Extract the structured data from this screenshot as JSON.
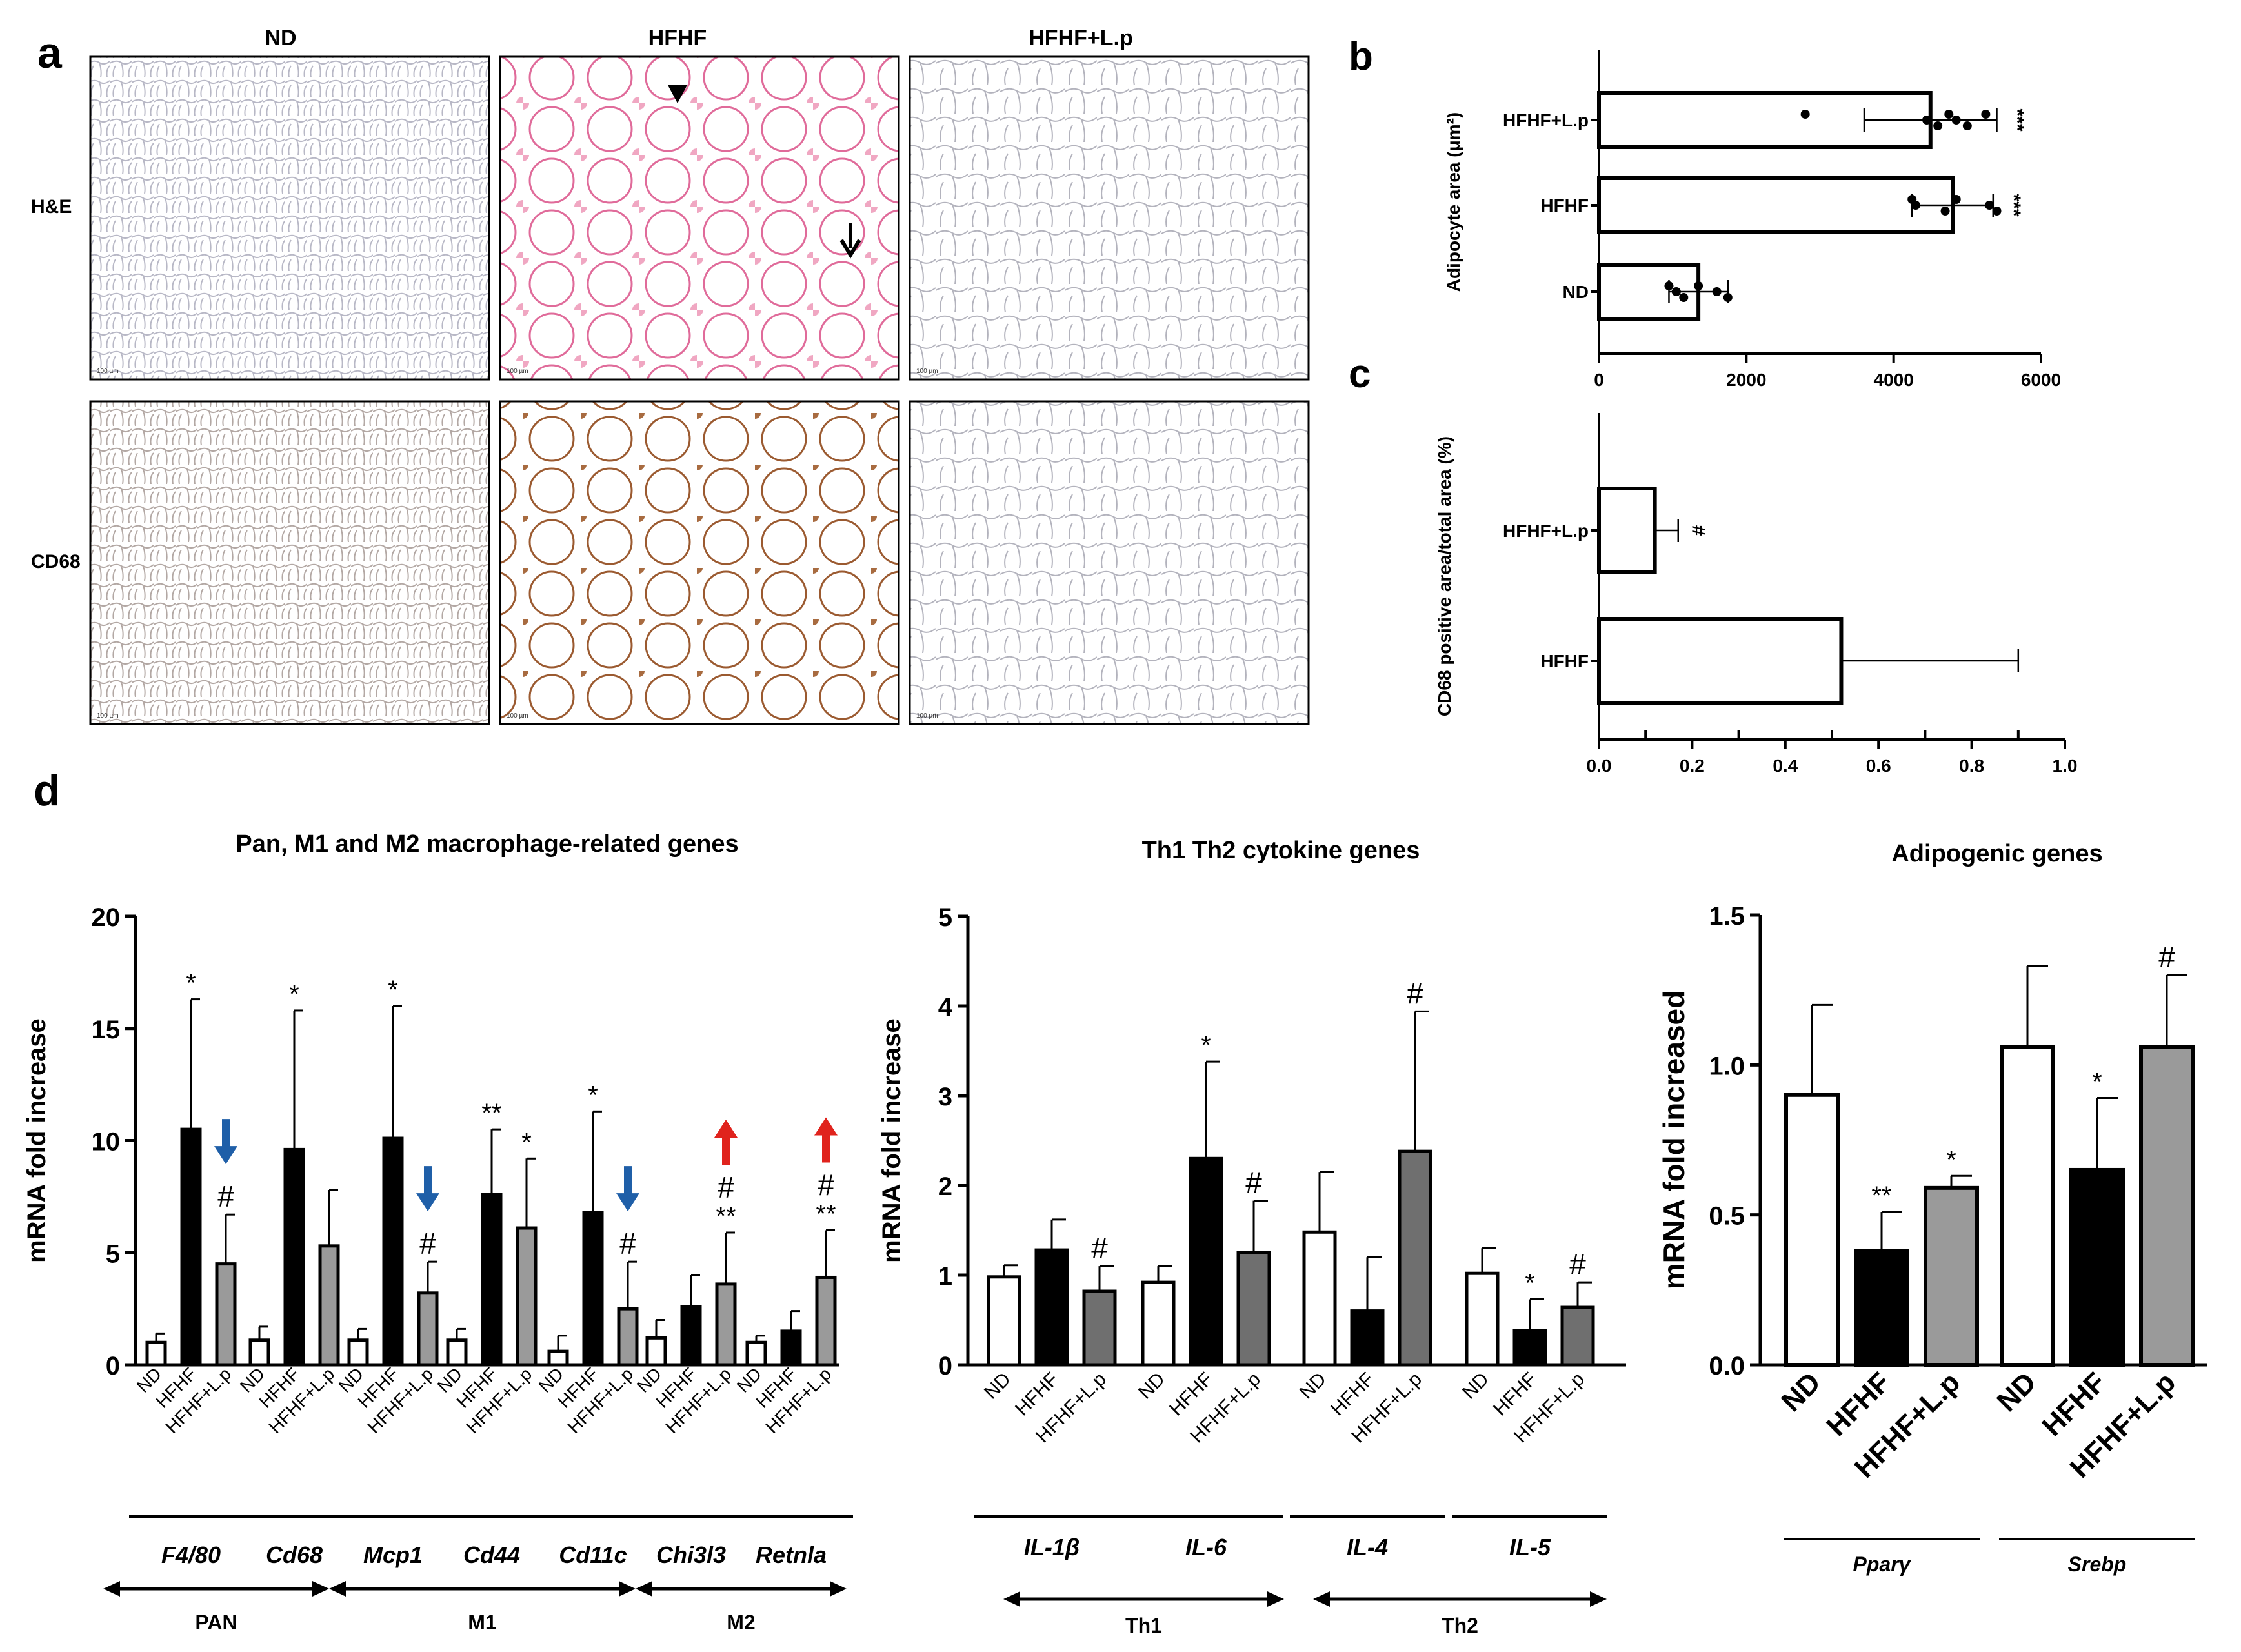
{
  "panels": {
    "a": "a",
    "b": "b",
    "c": "c",
    "d": "d"
  },
  "micrograph": {
    "columns": [
      "ND",
      "HFHF",
      "HFHF+L.p"
    ],
    "rows": [
      "H&E",
      "CD68"
    ],
    "scale_label": "100 µm"
  },
  "colors": {
    "he_stain": "#d9507f",
    "cd68_stain": "#8a4a22",
    "tissue_line": "#9a9aa6",
    "blue_arrow": "#1f5fa8",
    "red_arrow": "#e0231d",
    "gray_bar": "#9a9a9a",
    "dark_gray_bar": "#6f6f6f"
  },
  "chart_data": [
    {
      "id": "b",
      "type": "bar",
      "orientation": "horizontal",
      "categories": [
        "HFHF+L.p",
        "HFHF",
        "ND"
      ],
      "values": [
        4500,
        4800,
        1350
      ],
      "errors": [
        900,
        550,
        400
      ],
      "points": [
        [
          2800,
          4450,
          4600,
          4750,
          4850,
          5000,
          5250
        ],
        [
          4250,
          4300,
          4700,
          4850,
          5300,
          5400
        ],
        [
          950,
          1050,
          1150,
          1350,
          1600,
          1750
        ]
      ],
      "markers": [
        "***",
        "***",
        ""
      ],
      "xlabel": "",
      "ylabel": "Adipocyte area (μm²)",
      "xlim": [
        0,
        6000
      ],
      "ticks": [
        0,
        2000,
        4000,
        6000
      ],
      "tick_labels": [
        "0",
        "2000",
        "4000",
        "6000"
      ]
    },
    {
      "id": "c",
      "type": "bar",
      "orientation": "horizontal",
      "categories": [
        "HFHF+L.p",
        "HFHF"
      ],
      "values": [
        0.12,
        0.52
      ],
      "errors": [
        0.05,
        0.38
      ],
      "markers": [
        "#",
        ""
      ],
      "ylabel": "CD68 positive area/total area (%)",
      "xlim": [
        0,
        1.0
      ],
      "ticks": [
        0,
        0.2,
        0.4,
        0.6,
        0.8,
        1.0
      ],
      "tick_labels": [
        "0.0",
        "0.2",
        "0.4",
        "0.6",
        "0.8",
        "1.0"
      ]
    },
    {
      "id": "d1",
      "type": "bar",
      "title": "Pan, M1 and M2 macrophage-related genes",
      "ylabel": "mRNA fold increase",
      "ylim": [
        0,
        20
      ],
      "yticks": [
        0,
        5,
        10,
        15,
        20
      ],
      "ytick_labels": [
        "0",
        "5",
        "10",
        "15",
        "20"
      ],
      "groups": [
        "F4/80",
        "Cd68",
        "Mcp1",
        "Cd44",
        "Cd11c",
        "Chi3l3",
        "Retnla"
      ],
      "series_names": [
        "ND",
        "HFHF",
        "HFHF+L.p"
      ],
      "values": [
        [
          1.0,
          10.5,
          4.5
        ],
        [
          1.1,
          9.6,
          5.3
        ],
        [
          1.1,
          10.1,
          3.2
        ],
        [
          1.1,
          7.6,
          6.1
        ],
        [
          0.6,
          6.8,
          2.5
        ],
        [
          1.2,
          2.6,
          3.6
        ],
        [
          1.0,
          1.5,
          3.9
        ]
      ],
      "errors": [
        [
          0.4,
          5.8,
          2.2
        ],
        [
          0.6,
          6.2,
          2.5
        ],
        [
          0.5,
          5.9,
          1.4
        ],
        [
          0.5,
          2.9,
          3.1
        ],
        [
          0.7,
          4.5,
          2.1
        ],
        [
          0.8,
          1.4,
          2.3
        ],
        [
          0.3,
          0.9,
          2.1
        ]
      ],
      "markers": [
        [
          "",
          "*",
          "#"
        ],
        [
          "",
          "*",
          ""
        ],
        [
          "",
          "*",
          "#"
        ],
        [
          "",
          "**",
          "*"
        ],
        [
          "",
          "*",
          "#"
        ],
        [
          "",
          "",
          "**\n#"
        ],
        [
          "",
          "",
          "**\n#"
        ]
      ],
      "arrows": [
        [
          "F4/80",
          "down"
        ],
        [
          "Mcp1",
          "down"
        ],
        [
          "Cd11c",
          "down"
        ],
        [
          "Chi3l3",
          "up"
        ],
        [
          "Retnla",
          "up"
        ]
      ],
      "categories_axis": [
        "PAN",
        "M1",
        "M2"
      ]
    },
    {
      "id": "d2",
      "type": "bar",
      "title": "Th1 Th2 cytokine genes",
      "ylabel": "mRNA fold increase",
      "ylim": [
        0,
        5
      ],
      "yticks": [
        0,
        1,
        2,
        3,
        4,
        5
      ],
      "ytick_labels": [
        "0",
        "1",
        "2",
        "3",
        "4",
        "5"
      ],
      "groups": [
        "IL-1β",
        "IL-6",
        "IL-4",
        "IL-5"
      ],
      "series_names": [
        "ND",
        "HFHF",
        "HFHF+L.p"
      ],
      "values": [
        [
          0.98,
          1.28,
          0.82
        ],
        [
          0.92,
          2.3,
          1.25
        ],
        [
          1.48,
          0.6,
          2.38
        ],
        [
          1.02,
          0.38,
          0.64
        ]
      ],
      "errors": [
        [
          0.13,
          0.34,
          0.28
        ],
        [
          0.18,
          1.08,
          0.58
        ],
        [
          0.67,
          0.6,
          1.56
        ],
        [
          0.28,
          0.35,
          0.28
        ]
      ],
      "markers": [
        [
          "",
          "",
          "#"
        ],
        [
          "",
          "*",
          "#"
        ],
        [
          "",
          "",
          "#"
        ],
        [
          "",
          "*",
          "#"
        ]
      ],
      "categories_axis": [
        "Th1",
        "Th2"
      ]
    },
    {
      "id": "d3",
      "type": "bar",
      "title": "Adipogenic genes",
      "ylabel": "mRNA fold increased",
      "ylim": [
        0,
        1.5
      ],
      "yticks": [
        0,
        0.5,
        1.0,
        1.5
      ],
      "ytick_labels": [
        "0.0",
        "0.5",
        "1.0",
        "1.5"
      ],
      "groups": [
        "Pparγ",
        "Srebp"
      ],
      "series_names": [
        "ND",
        "HFHF",
        "HFHF+L.p"
      ],
      "values": [
        [
          0.9,
          0.38,
          0.59
        ],
        [
          1.06,
          0.65,
          1.06
        ]
      ],
      "errors": [
        [
          0.3,
          0.13,
          0.04
        ],
        [
          0.27,
          0.24,
          0.24
        ]
      ],
      "markers": [
        [
          "",
          "**",
          "*"
        ],
        [
          "",
          "*",
          "#"
        ]
      ]
    }
  ]
}
